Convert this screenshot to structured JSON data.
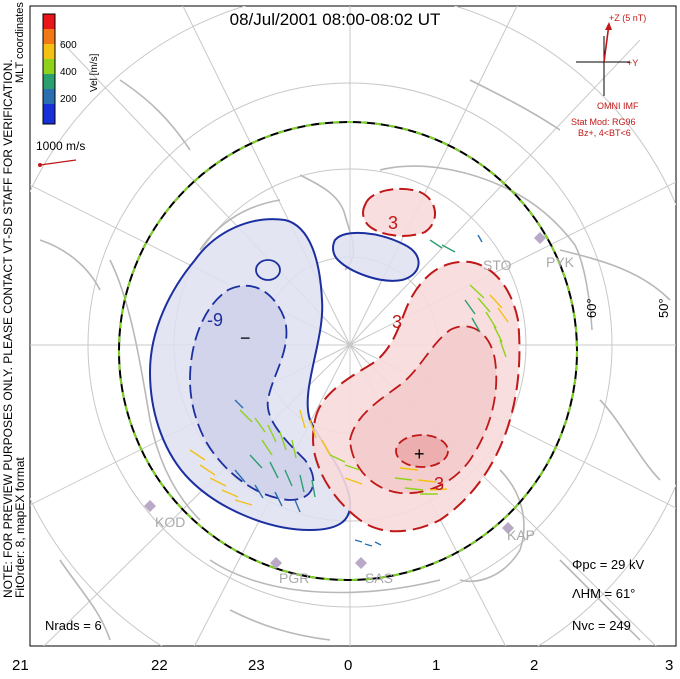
{
  "title": "08/Jul/2001 08:00-08:02 UT",
  "colorbar": {
    "coord_label": "MLT coordinates",
    "vel_label": "Vel [m/s]",
    "ticks": [
      "600",
      "400",
      "200"
    ],
    "colors": [
      "#e8161a",
      "#f27817",
      "#f3c113",
      "#8fd21b",
      "#2b9f6e",
      "#2a6fb0",
      "#1730d8"
    ]
  },
  "scale_vector": "1000 m/s",
  "note": "NOTE: FOR PREVIEW PURPOSES ONLY. PLEASE CONTACT VT-SD STAFF FOR VERIFICATION.",
  "fit": "FitOrder: 8, mapEX format",
  "imf": {
    "z_label": "+Z (5 nT)",
    "y_label": "+Y",
    "source": "OMNI IMF",
    "stat_mod": "Stat Mod: RG96",
    "condition": "Bz+, 4<BT<6"
  },
  "lat_labels": [
    "60°",
    "50°"
  ],
  "stations": [
    "STO",
    "PYK",
    "KOD",
    "KAP",
    "PGR",
    "SAS"
  ],
  "contour_labels": {
    "negative": "-9",
    "positive_a": "3",
    "positive_b": "3",
    "positive_c": "3"
  },
  "extrema": {
    "min": "−",
    "max": "+"
  },
  "stats": {
    "pcp": "Φpc = 29 kV",
    "hmb": "ΛHM = 61°",
    "nvc": "Nvc = 249",
    "nrads": "Nrads = 6"
  },
  "mlt_ticks": [
    "21",
    "22",
    "23",
    "0",
    "1",
    "2",
    "3"
  ],
  "colors": {
    "negative": "#1b2fa0",
    "positive": "#c01818",
    "boundary_green": "#7ed321",
    "grid": "#c8c8c8",
    "land": "#b8b8b8",
    "station": "#b9a8c6"
  }
}
